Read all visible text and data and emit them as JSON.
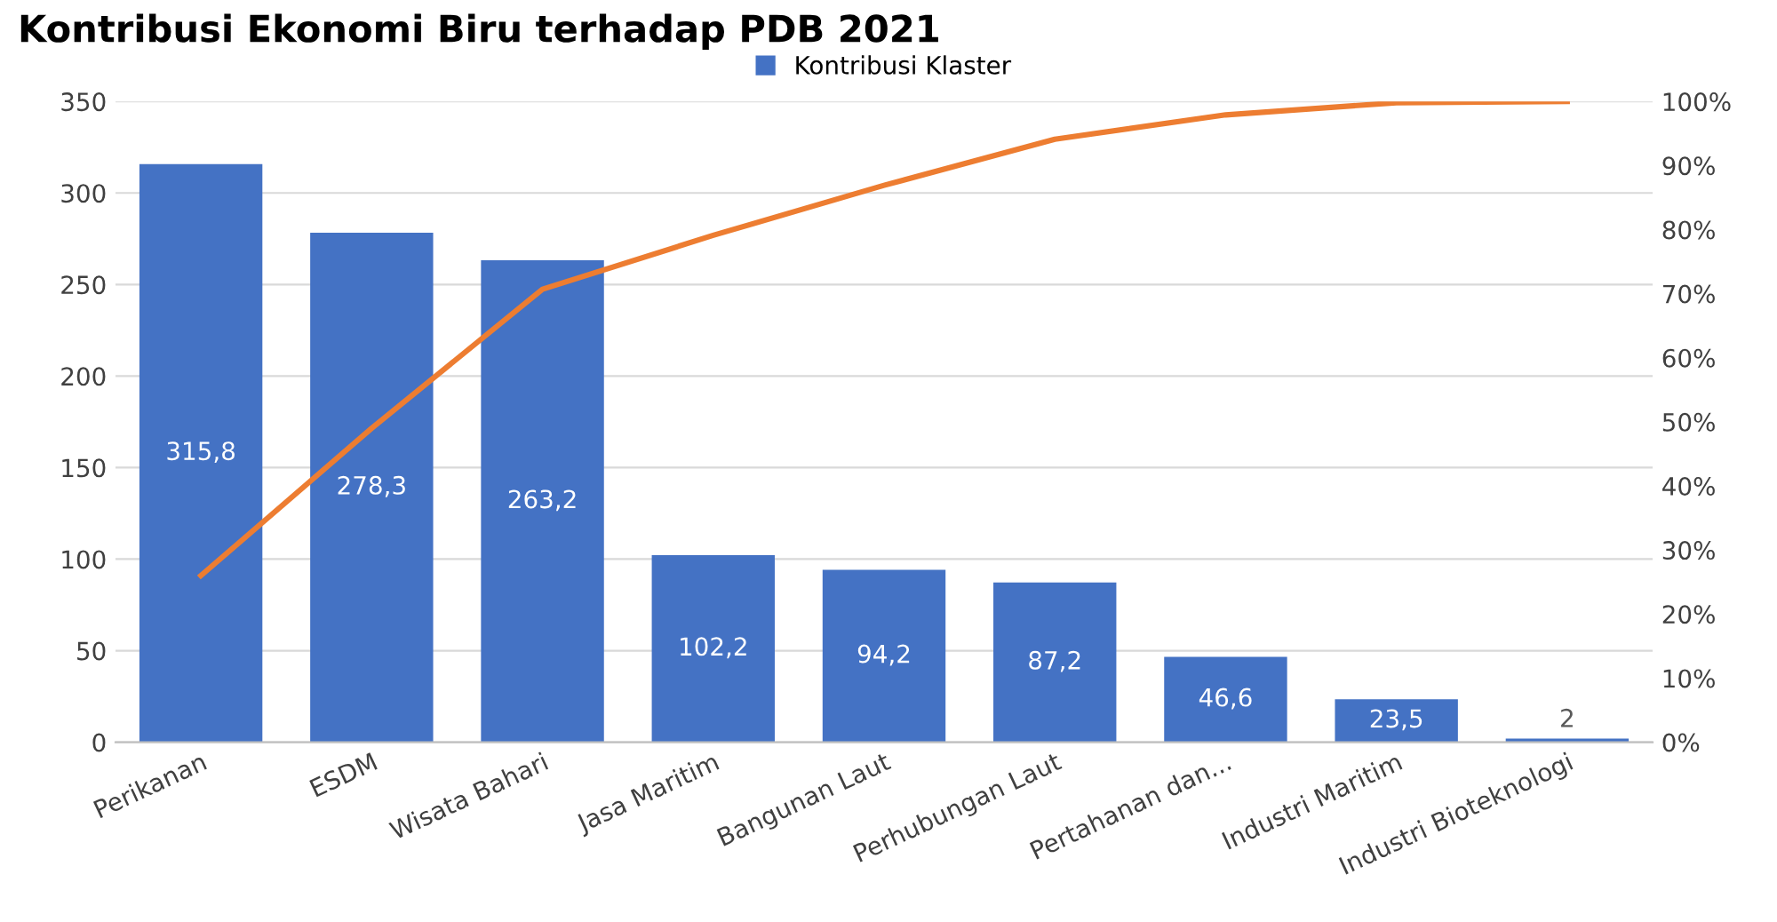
{
  "chart_data": {
    "type": "bar",
    "title": "Kontribusi Ekonomi Biru terhadap PDB 2021",
    "categories": [
      "Perikanan",
      "ESDM",
      "Wisata Bahari",
      "Jasa Maritim",
      "Bangunan Laut",
      "Perhubungan Laut",
      "Pertahanan dan...",
      "Industri Maritim",
      "Industri Bioteknologi"
    ],
    "series": [
      {
        "name": "Kontribusi Klaster",
        "type": "bar",
        "color": "#4472c4",
        "values": [
          315.8,
          278.3,
          263.2,
          102.2,
          94.2,
          87.2,
          46.6,
          23.5,
          2
        ],
        "value_labels": [
          "315,8",
          "278,3",
          "263,2",
          "102,2",
          "94,2",
          "87,2",
          "46,6",
          "23,5",
          "2"
        ]
      },
      {
        "type": "line",
        "axis": "y2",
        "color": "#ed7d31",
        "values": [
          26.0,
          49.0,
          70.7,
          79.1,
          86.9,
          94.1,
          97.9,
          99.8,
          100
        ]
      }
    ],
    "ylim": [
      0,
      350
    ],
    "yticks": [
      0,
      50,
      100,
      150,
      200,
      250,
      300,
      350
    ],
    "y2lim": [
      0,
      100
    ],
    "y2ticks": [
      {
        "value": 0,
        "label": "0%"
      },
      {
        "value": 10,
        "label": "10%"
      },
      {
        "value": 20,
        "label": "20%"
      },
      {
        "value": 30,
        "label": "30%"
      },
      {
        "value": 40,
        "label": "40%"
      },
      {
        "value": 50,
        "label": "50%"
      },
      {
        "value": 60,
        "label": "60%"
      },
      {
        "value": 70,
        "label": "70%"
      },
      {
        "value": 80,
        "label": "80%"
      },
      {
        "value": 90,
        "label": "90%"
      },
      {
        "value": 100,
        "label": "100%"
      }
    ],
    "grid": "y",
    "legend": "top"
  }
}
